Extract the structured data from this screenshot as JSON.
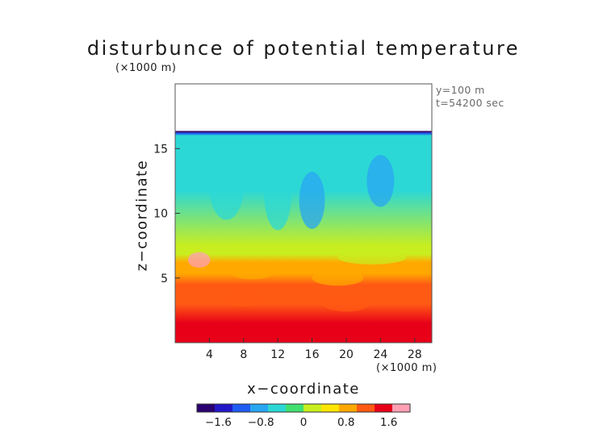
{
  "chart_data": {
    "type": "heatmap",
    "title": "disturbunce of potential temperature",
    "y_unit": "(×1000 m)",
    "x_unit": "(×1000 m)",
    "info_lines": [
      "y=100 m",
      "t=54200 sec"
    ],
    "xlabel": "x−coordinate",
    "ylabel": "z−coordinate",
    "xlim": [
      0,
      30
    ],
    "ylim": [
      0,
      20
    ],
    "x_ticks": [
      4,
      8,
      12,
      16,
      20,
      24,
      28
    ],
    "y_ticks": [
      5,
      10,
      15
    ],
    "data_top": 16.3,
    "colorbar": {
      "range": [
        -2.0,
        2.0
      ],
      "ticks": [
        {
          "value": -1.6,
          "label": "−1.6"
        },
        {
          "value": -0.8,
          "label": "−0.8"
        },
        {
          "value": 0,
          "label": "0"
        },
        {
          "value": 0.8,
          "label": "0.8"
        },
        {
          "value": 1.6,
          "label": "1.6"
        }
      ],
      "colors": [
        "#2a0070",
        "#2318c8",
        "#1f5cf2",
        "#28a6f2",
        "#2cd8d6",
        "#40e070",
        "#c8ee20",
        "#ffe600",
        "#ffa800",
        "#ff5a14",
        "#e80018",
        "#ff9fb4"
      ]
    },
    "field_description_bands": [
      {
        "z_range": [
          16.0,
          16.3
        ],
        "value": -1.3
      },
      {
        "z_range": [
          7.5,
          16.0
        ],
        "value": -0.55
      },
      {
        "z_range": [
          6.2,
          7.5
        ],
        "value": 0.2
      },
      {
        "z_range": [
          4.5,
          6.2
        ],
        "value": 0.75
      },
      {
        "z_range": [
          1.5,
          4.5
        ],
        "value": 1.1
      },
      {
        "z_range": [
          0,
          1.5
        ],
        "value": 1.45
      }
    ]
  }
}
